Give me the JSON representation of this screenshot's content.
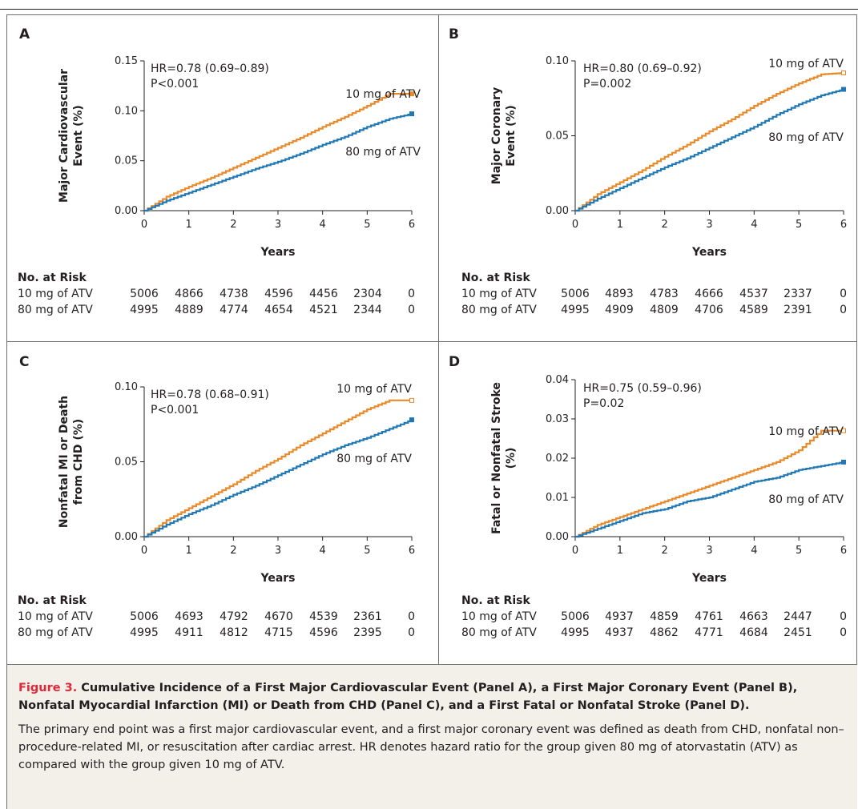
{
  "colors": {
    "atv10": "#e98a2a",
    "atv80": "#1f78b4"
  },
  "chart_data": [
    {
      "panel": "A",
      "type": "line",
      "ylabel": [
        "Major Cardiovascular",
        "Event (%)"
      ],
      "xlabel": "Years",
      "xlim": [
        0,
        6
      ],
      "ylim": [
        0,
        0.15
      ],
      "xticks": [
        "0",
        "1",
        "2",
        "3",
        "4",
        "5",
        "6"
      ],
      "yticks": [
        "0.00",
        "0.05",
        "0.10",
        "0.15"
      ],
      "hr": "HR=0.78 (0.69–0.89)",
      "p": "P<0.001",
      "series": [
        {
          "name": "10 mg of ATV",
          "color": "#e98a2a",
          "x": [
            0,
            0.5,
            1,
            1.5,
            2,
            2.5,
            3,
            3.5,
            4,
            4.5,
            5,
            5.5,
            6
          ],
          "y": [
            0,
            0.014,
            0.024,
            0.033,
            0.043,
            0.053,
            0.063,
            0.073,
            0.084,
            0.094,
            0.105,
            0.117,
            0.117
          ]
        },
        {
          "name": "80 mg of ATV",
          "color": "#1f78b4",
          "x": [
            0,
            0.5,
            1,
            1.5,
            2,
            2.5,
            3,
            3.5,
            4,
            4.5,
            5,
            5.5,
            6
          ],
          "y": [
            0,
            0.01,
            0.018,
            0.026,
            0.034,
            0.042,
            0.049,
            0.057,
            0.066,
            0.074,
            0.084,
            0.092,
            0.097
          ]
        }
      ],
      "risk": {
        "heading": "No. at Risk",
        "rows": [
          {
            "label": "10 mg of ATV",
            "values": [
              "5006",
              "4866",
              "4738",
              "4596",
              "4456",
              "2304",
              "0"
            ]
          },
          {
            "label": "80 mg of ATV",
            "values": [
              "4995",
              "4889",
              "4774",
              "4654",
              "4521",
              "2344",
              "0"
            ]
          }
        ]
      }
    },
    {
      "panel": "B",
      "type": "line",
      "ylabel": [
        "Major Coronary",
        "Event (%)"
      ],
      "xlabel": "Years",
      "xlim": [
        0,
        6
      ],
      "ylim": [
        0,
        0.1
      ],
      "xticks": [
        "0",
        "1",
        "2",
        "3",
        "4",
        "5",
        "6"
      ],
      "yticks": [
        "0.00",
        "0.05",
        "0.10"
      ],
      "hr": "HR=0.80 (0.69–0.92)",
      "p": "P=0.002",
      "series": [
        {
          "name": "10 mg of ATV",
          "color": "#e98a2a",
          "x": [
            0,
            0.5,
            1,
            1.5,
            2,
            2.5,
            3,
            3.5,
            4,
            4.5,
            5,
            5.5,
            6
          ],
          "y": [
            0,
            0.011,
            0.019,
            0.027,
            0.036,
            0.044,
            0.053,
            0.061,
            0.07,
            0.078,
            0.085,
            0.091,
            0.092
          ]
        },
        {
          "name": "80 mg of ATV",
          "color": "#1f78b4",
          "x": [
            0,
            0.5,
            1,
            1.5,
            2,
            2.5,
            3,
            3.5,
            4,
            4.5,
            5,
            5.5,
            6
          ],
          "y": [
            0,
            0.008,
            0.015,
            0.022,
            0.029,
            0.035,
            0.042,
            0.049,
            0.056,
            0.064,
            0.071,
            0.077,
            0.081
          ]
        }
      ],
      "risk": {
        "heading": "No. at Risk",
        "rows": [
          {
            "label": "10 mg of ATV",
            "values": [
              "5006",
              "4893",
              "4783",
              "4666",
              "4537",
              "2337",
              "0"
            ]
          },
          {
            "label": "80 mg of ATV",
            "values": [
              "4995",
              "4909",
              "4809",
              "4706",
              "4589",
              "2391",
              "0"
            ]
          }
        ]
      }
    },
    {
      "panel": "C",
      "type": "line",
      "ylabel": [
        "Nonfatal MI or Death",
        "from CHD (%)"
      ],
      "xlabel": "Years",
      "xlim": [
        0,
        6
      ],
      "ylim": [
        0,
        0.1
      ],
      "xticks": [
        "0",
        "1",
        "2",
        "3",
        "4",
        "5",
        "6"
      ],
      "yticks": [
        "0.00",
        "0.05",
        "0.10"
      ],
      "hr": "HR=0.78 (0.68–0.91)",
      "p": "P<0.001",
      "series": [
        {
          "name": "10 mg of ATV",
          "color": "#e98a2a",
          "x": [
            0,
            0.5,
            1,
            1.5,
            2,
            2.5,
            3,
            3.5,
            4,
            4.5,
            5,
            5.5,
            6
          ],
          "y": [
            0,
            0.011,
            0.019,
            0.027,
            0.035,
            0.044,
            0.052,
            0.061,
            0.069,
            0.077,
            0.085,
            0.091,
            0.091
          ]
        },
        {
          "name": "80 mg of ATV",
          "color": "#1f78b4",
          "x": [
            0,
            0.5,
            1,
            1.5,
            2,
            2.5,
            3,
            3.5,
            4,
            4.5,
            5,
            5.5,
            6
          ],
          "y": [
            0,
            0.008,
            0.015,
            0.021,
            0.028,
            0.034,
            0.041,
            0.048,
            0.055,
            0.061,
            0.066,
            0.072,
            0.078
          ]
        }
      ],
      "risk": {
        "heading": "No. at Risk",
        "rows": [
          {
            "label": "10 mg of ATV",
            "values": [
              "5006",
              "4693",
              "4792",
              "4670",
              "4539",
              "2361",
              "0"
            ]
          },
          {
            "label": "80 mg of ATV",
            "values": [
              "4995",
              "4911",
              "4812",
              "4715",
              "4596",
              "2395",
              "0"
            ]
          }
        ]
      }
    },
    {
      "panel": "D",
      "type": "line",
      "ylabel": [
        "Fatal or Nonfatal Stroke",
        "(%)"
      ],
      "xlabel": "Years",
      "xlim": [
        0,
        6
      ],
      "ylim": [
        0,
        0.04
      ],
      "xticks": [
        "0",
        "1",
        "2",
        "3",
        "4",
        "5",
        "6"
      ],
      "yticks": [
        "0.00",
        "0.01",
        "0.02",
        "0.03",
        "0.04"
      ],
      "hr": "HR=0.75 (0.59–0.96)",
      "p": "P=0.02",
      "series": [
        {
          "name": "10 mg of ATV",
          "color": "#e98a2a",
          "x": [
            0,
            0.5,
            1,
            1.5,
            2,
            2.5,
            3,
            3.5,
            4,
            4.5,
            5,
            5.5,
            6
          ],
          "y": [
            0,
            0.003,
            0.005,
            0.007,
            0.009,
            0.011,
            0.013,
            0.015,
            0.017,
            0.019,
            0.022,
            0.027,
            0.027
          ]
        },
        {
          "name": "80 mg of ATV",
          "color": "#1f78b4",
          "x": [
            0,
            0.5,
            1,
            1.5,
            2,
            2.5,
            3,
            3.5,
            4,
            4.5,
            5,
            5.5,
            6
          ],
          "y": [
            0,
            0.002,
            0.004,
            0.006,
            0.007,
            0.009,
            0.01,
            0.012,
            0.014,
            0.015,
            0.017,
            0.018,
            0.019
          ]
        }
      ],
      "risk": {
        "heading": "No. at Risk",
        "rows": [
          {
            "label": "10 mg of ATV",
            "values": [
              "5006",
              "4937",
              "4859",
              "4761",
              "4663",
              "2447",
              "0"
            ]
          },
          {
            "label": "80 mg of ATV",
            "values": [
              "4995",
              "4937",
              "4862",
              "4771",
              "4684",
              "2451",
              "0"
            ]
          }
        ]
      }
    }
  ],
  "caption": {
    "label": "Figure 3.",
    "title": "Cumulative Incidence of a First Major Cardiovascular Event (Panel A), a First Major Coronary Event (Panel B), Nonfatal Myocardial Infarction (MI) or Death from CHD (Panel C), and a First Fatal or Nonfatal Stroke (Panel D).",
    "body": "The primary end point was a first major cardiovascular event, and a first major coronary event was defined as death from CHD, nonfatal non–procedure-related MI, or resuscitation after cardiac arrest. HR denotes hazard ratio for the group given 80 mg of atorvastatin (ATV) as compared with the group given 10 mg of ATV."
  }
}
